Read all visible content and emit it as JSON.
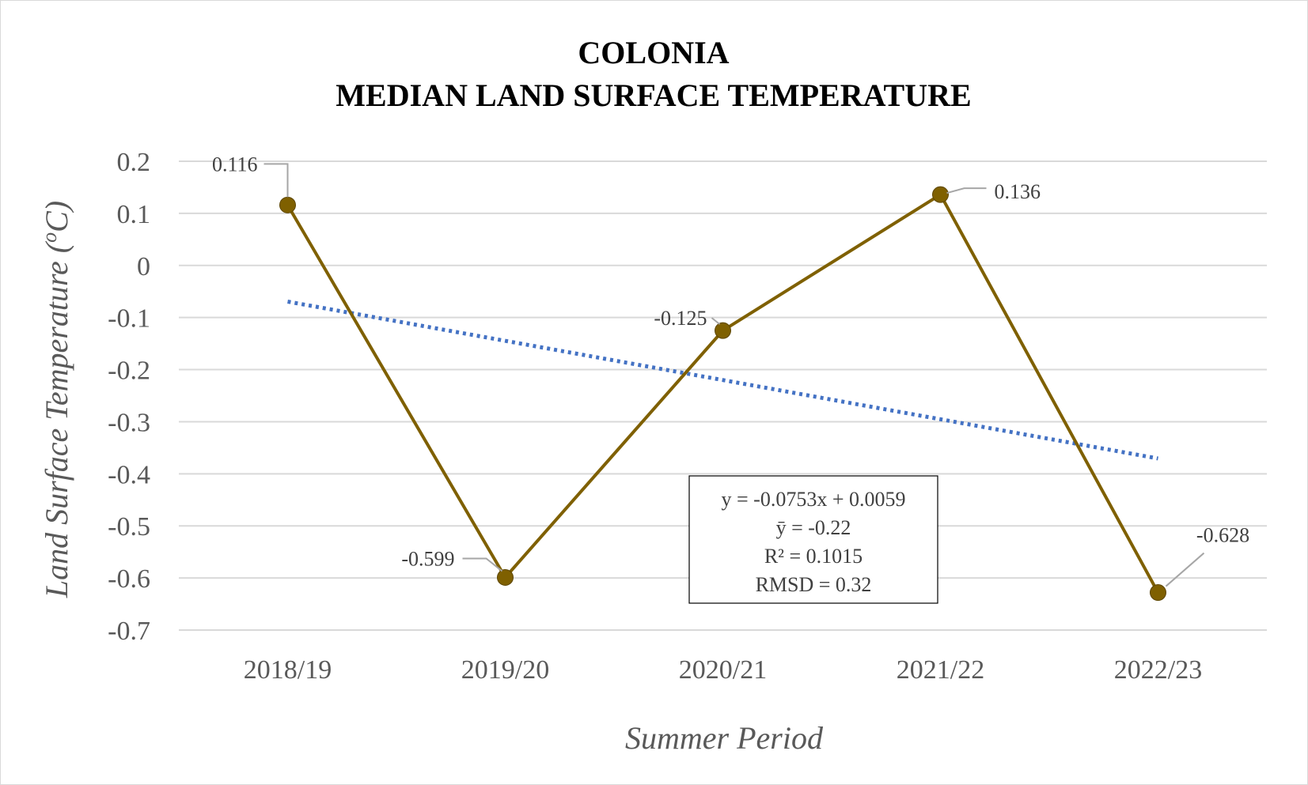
{
  "chart_data": {
    "type": "line",
    "title": [
      "COLONIA",
      "MEDIAN LAND SURFACE TEMPERATURE"
    ],
    "xlabel": "Summer Period",
    "ylabel": "Land Surface Temperature (",
    "ylabel_sup": "o",
    "ylabel_tail": "C)",
    "categories": [
      "2018/19",
      "2019/20",
      "2020/21",
      "2021/22",
      "2022/23"
    ],
    "series": [
      {
        "values": [
          0.116,
          -0.599,
          -0.125,
          0.136,
          -0.628
        ],
        "data_labels": [
          "0.116",
          "-0.599",
          "-0.125",
          "0.136",
          "-0.628"
        ],
        "color": "#7f6000"
      }
    ],
    "trendline": {
      "type": "linear",
      "style": "dotted",
      "color": "#4472c4",
      "y_start": -0.0694,
      "y_end": -0.3706
    },
    "ylim": [
      -0.7,
      0.2
    ],
    "y_ticks": [
      0.2,
      0.1,
      0,
      -0.1,
      -0.2,
      -0.3,
      -0.4,
      -0.5,
      -0.6,
      -0.7
    ],
    "y_tick_labels": [
      "0.2",
      "0.1",
      "0",
      "-0.1",
      "-0.2",
      "-0.3",
      "-0.4",
      "-0.5",
      "-0.6",
      "-0.7"
    ],
    "grid": true,
    "legend": "none",
    "stats_box": [
      "y = -0.0753x + 0.0059",
      "ȳ = -0.22",
      "R² = 0.1015",
      "RMSD = 0.32"
    ],
    "colors": {
      "grid": "#d9d9d9",
      "text": "#595959",
      "leader": "#a6a6a6"
    }
  }
}
